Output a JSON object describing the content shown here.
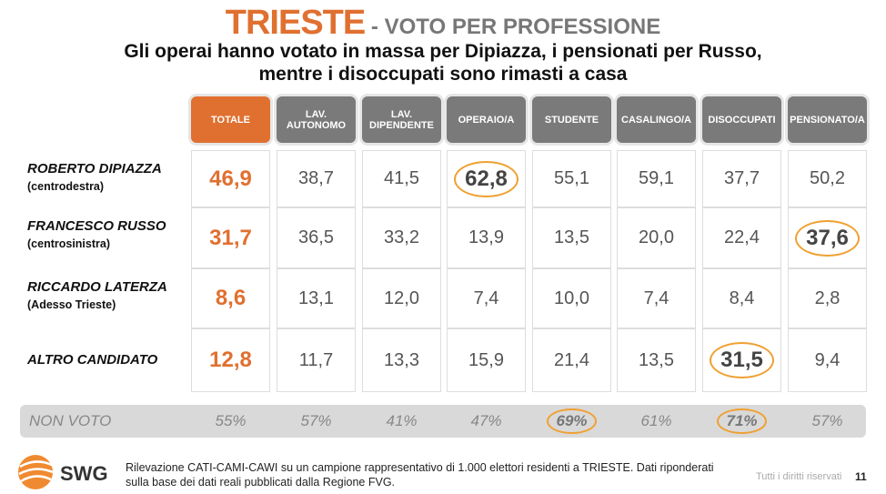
{
  "title": {
    "main": "TRIESTE",
    "suffix": " - VOTO PER PROFESSIONE"
  },
  "subtitle": {
    "line1": "Gli operai hanno votato in massa per Dipiazza, i pensionati per Russo,",
    "line2": "mentre i disoccupati sono rimasti a casa"
  },
  "columns": [
    "TOTALE",
    "LAV. AUTONOMO",
    "LAV. DIPENDENTE",
    "OPERAIO/A",
    "STUDENTE",
    "CASALINGO/A",
    "DISOCCUPATI",
    "PENSIONATO/A"
  ],
  "rows": [
    {
      "name": "ROBERTO DIPIAZZA",
      "party": "(centrodestra)",
      "values": [
        "46,9",
        "38,7",
        "41,5",
        "62,8",
        "55,1",
        "59,1",
        "37,7",
        "50,2"
      ],
      "highlight": [
        3
      ]
    },
    {
      "name": "FRANCESCO RUSSO",
      "party": "(centrosinistra)",
      "values": [
        "31,7",
        "36,5",
        "33,2",
        "13,9",
        "13,5",
        "20,0",
        "22,4",
        "37,6"
      ],
      "highlight": [
        7
      ]
    },
    {
      "name": "RICCARDO LATERZA",
      "party": "(Adesso Trieste)",
      "values": [
        "8,6",
        "13,1",
        "12,0",
        "7,4",
        "10,0",
        "7,4",
        "8,4",
        "2,8"
      ],
      "highlight": []
    },
    {
      "name": "ALTRO CANDIDATO",
      "party": "",
      "values": [
        "12,8",
        "11,7",
        "13,3",
        "15,9",
        "21,4",
        "13,5",
        "31,5",
        "9,4"
      ],
      "highlight": [
        6
      ]
    }
  ],
  "non_voto": {
    "label": "NON VOTO",
    "values": [
      "55%",
      "57%",
      "41%",
      "47%",
      "69%",
      "61%",
      "71%",
      "57%"
    ],
    "highlight": [
      4,
      6
    ]
  },
  "footer": {
    "note_line1": "Rilevazione CATI-CAMI-CAWI su un campione rappresentativo di 1.000 elettori residenti a TRIESTE. Dati riponderati",
    "note_line2": "sulla base dei dati reali pubblicati dalla Regione FVG.",
    "logo": "SWG",
    "rights": "Tutti i diritti riservati",
    "page": "11"
  },
  "colors": {
    "accent": "#e07030",
    "header": "#7a7a7a",
    "highlight": "#f0a030"
  }
}
